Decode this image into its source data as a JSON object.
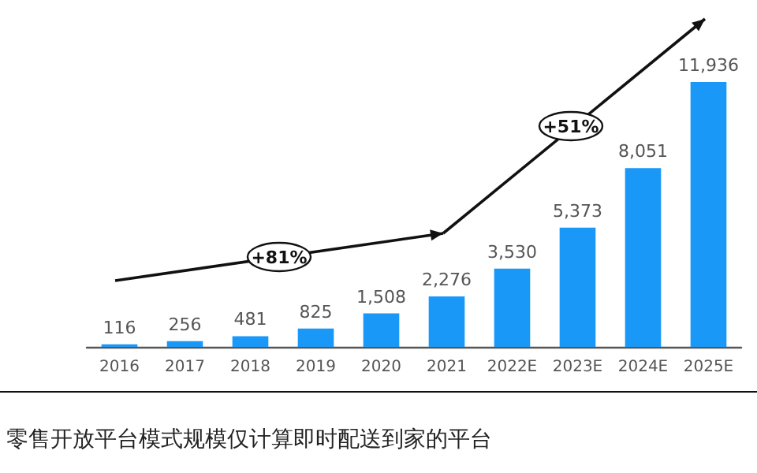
{
  "chart_data": {
    "type": "bar",
    "categories": [
      "2016",
      "2017",
      "2018",
      "2019",
      "2020",
      "2021",
      "2022E",
      "2023E",
      "2024E",
      "2025E"
    ],
    "values": [
      116,
      256,
      481,
      825,
      1508,
      2276,
      3530,
      5373,
      8051,
      11936
    ],
    "color": "#1a98f8",
    "data_labels": true,
    "value_labels": [
      "116",
      "256",
      "481",
      "825",
      "1,508",
      "2,276",
      "3,530",
      "5,373",
      "8,051",
      "11,936"
    ],
    "annotations": [
      "+81%",
      "+51%",
      "零售开放平台模式规模仅计算即时配送到家的平台"
    ]
  }
}
